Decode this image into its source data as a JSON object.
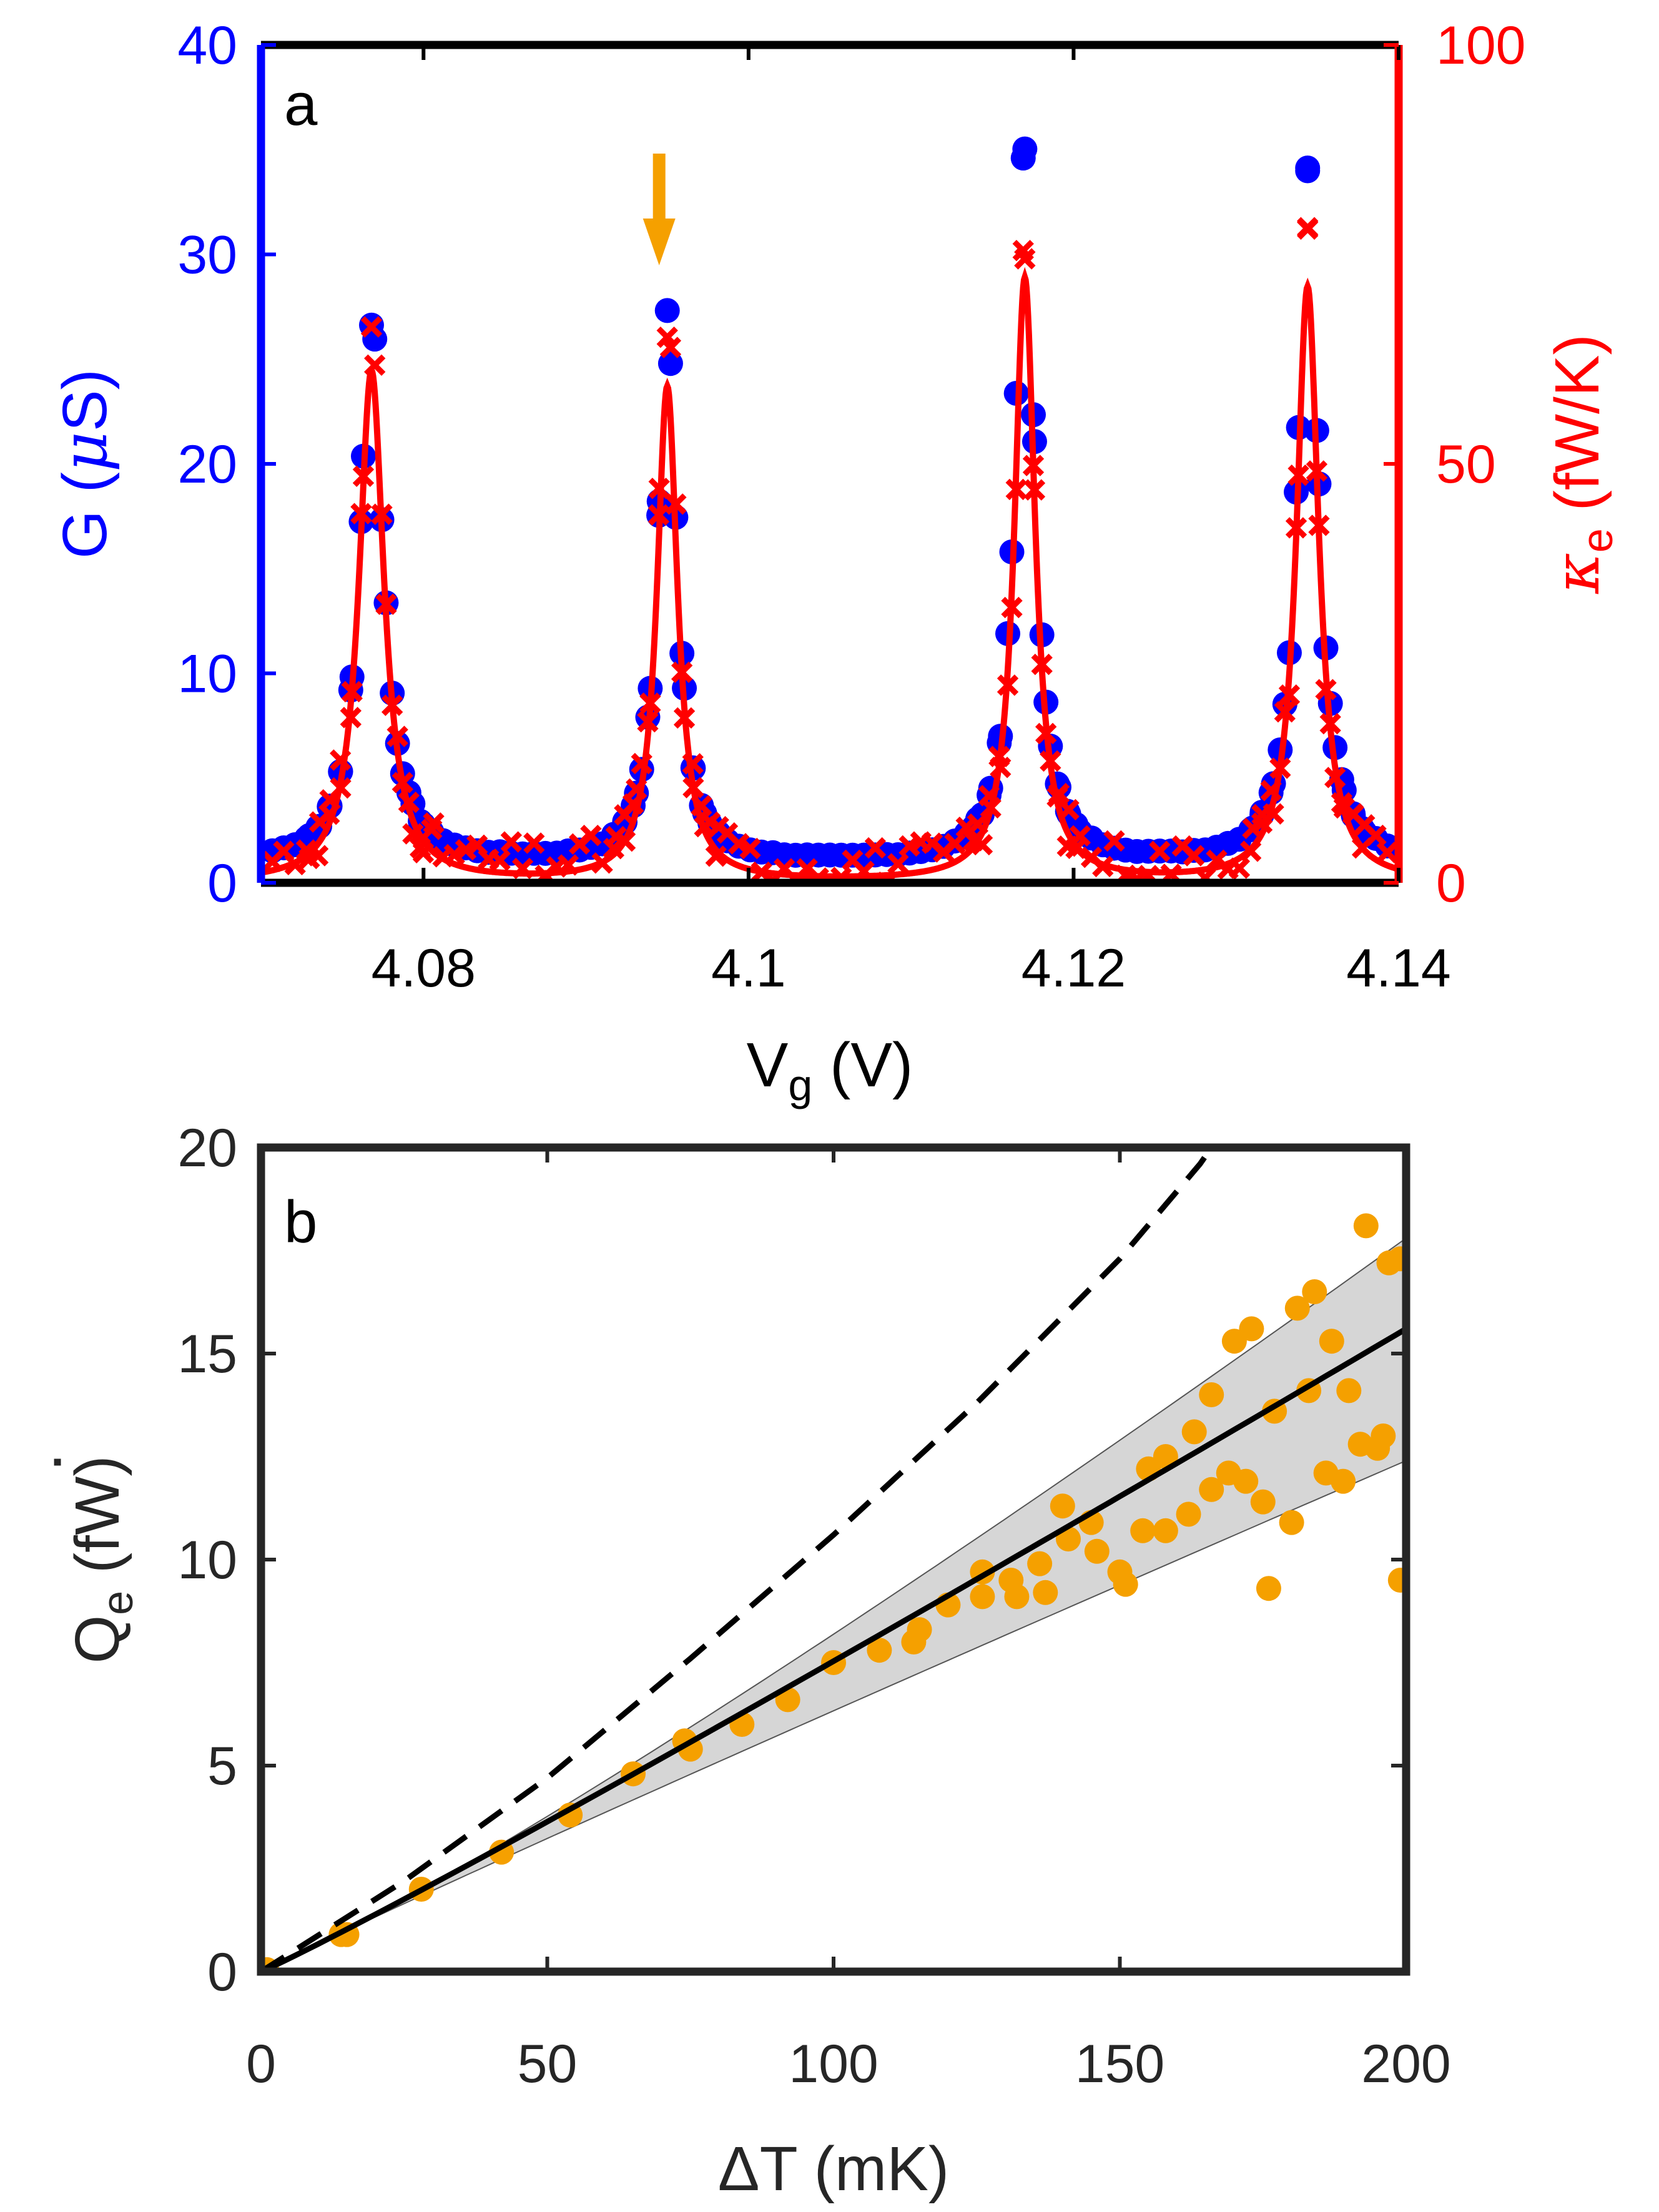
{
  "chart_data": [
    {
      "type": "scatter",
      "panel_label": "a",
      "xlabel": {
        "main": "V",
        "sub": "g",
        "unit": " (V)"
      },
      "ylabel_left": {
        "main": "G (",
        "mu": "μ",
        "unit": "S)"
      },
      "ylabel_right": {
        "kappa": "κ",
        "sub": "e",
        "unit": " (fW/K)"
      },
      "xlim": [
        4.07,
        4.14
      ],
      "ylim_left": [
        0,
        40
      ],
      "ylim_right": [
        0,
        100
      ],
      "xticks": [
        4.08,
        4.1,
        4.12,
        4.14
      ],
      "xtick_labels": [
        "4.08",
        "4.1",
        "4.12",
        "4.14"
      ],
      "yticks_left": [
        0,
        10,
        20,
        30,
        40
      ],
      "ytick_labels_left": [
        "0",
        "10",
        "20",
        "30",
        "40"
      ],
      "yticks_right": [
        0,
        50,
        100
      ],
      "ytick_labels_right": [
        "0",
        "50",
        "100"
      ],
      "colors": {
        "G": "#0000ff",
        "kappa": "#ff0000",
        "arrow": "#f5a000",
        "axis": "#000000"
      },
      "arrow_at_x": 4.0945,
      "peaks": [
        {
          "center": 4.0768,
          "G_peak": 27.0,
          "kappa_peak": 66,
          "kappa_fit_peak": 61,
          "width": 0.00085
        },
        {
          "center": 4.095,
          "G_peak": 27.3,
          "kappa_peak": 67,
          "kappa_fit_peak": 59,
          "width": 0.0007
        },
        {
          "center": 4.117,
          "G_peak": 35.0,
          "kappa_peak": 76,
          "kappa_fit_peak": 72,
          "width": 0.0007
        },
        {
          "center": 4.1344,
          "G_peak": 34.1,
          "kappa_peak": 77,
          "kappa_fit_peak": 71,
          "width": 0.00075
        }
      ],
      "baseline": {
        "G": 1.0,
        "kappa": 1.5
      },
      "series": [
        {
          "name": "G",
          "axis": "left",
          "marker": "circle"
        },
        {
          "name": "kappa_e",
          "axis": "right",
          "marker": "x"
        },
        {
          "name": "kappa_e fit",
          "axis": "right",
          "style": "line"
        }
      ]
    },
    {
      "type": "scatter",
      "panel_label": "b",
      "xlabel": "ΔT (mK)",
      "ylabel": {
        "dot": "˙",
        "main": "Q",
        "sub": "e",
        "unit": " (fW)"
      },
      "xlim": [
        0,
        200
      ],
      "ylim": [
        0,
        20
      ],
      "xticks": [
        0,
        50,
        100,
        150,
        200
      ],
      "xtick_labels": [
        "0",
        "50",
        "100",
        "150",
        "200"
      ],
      "yticks": [
        0,
        5,
        10,
        15,
        20
      ],
      "ytick_labels": [
        "0",
        "5",
        "10",
        "15",
        "20"
      ],
      "colors": {
        "points": "#f5a000",
        "band": "#b4b4b4",
        "fit": "#000000",
        "dashed": "#000000"
      },
      "points": [
        [
          0,
          0
        ],
        [
          1,
          0.05
        ],
        [
          14,
          0.9
        ],
        [
          15,
          0.9
        ],
        [
          28,
          2.0
        ],
        [
          42,
          2.9
        ],
        [
          54,
          3.8
        ],
        [
          65,
          4.8
        ],
        [
          74,
          5.6
        ],
        [
          75,
          5.4
        ],
        [
          84,
          6.0
        ],
        [
          92,
          6.6
        ],
        [
          100,
          7.5
        ],
        [
          108,
          7.8
        ],
        [
          114,
          8.0
        ],
        [
          115,
          8.3
        ],
        [
          120,
          8.9
        ],
        [
          126,
          9.7
        ],
        [
          126,
          9.1
        ],
        [
          131,
          9.5
        ],
        [
          132,
          9.1
        ],
        [
          136,
          9.9
        ],
        [
          137,
          9.2
        ],
        [
          140,
          11.3
        ],
        [
          141,
          10.5
        ],
        [
          145,
          10.9
        ],
        [
          146,
          10.2
        ],
        [
          150,
          9.7
        ],
        [
          151,
          9.4
        ],
        [
          154,
          10.7
        ],
        [
          155,
          12.2
        ],
        [
          158,
          12.5
        ],
        [
          158,
          10.7
        ],
        [
          162,
          11.1
        ],
        [
          163,
          13.1
        ],
        [
          166,
          11.7
        ],
        [
          166,
          14.0
        ],
        [
          169,
          12.1
        ],
        [
          170,
          15.3
        ],
        [
          172,
          11.9
        ],
        [
          173,
          15.6
        ],
        [
          175,
          11.4
        ],
        [
          176,
          9.3
        ],
        [
          177,
          13.6
        ],
        [
          180,
          10.9
        ],
        [
          181,
          16.1
        ],
        [
          183,
          14.1
        ],
        [
          184,
          16.5
        ],
        [
          186,
          12.1
        ],
        [
          187,
          15.3
        ],
        [
          189,
          11.9
        ],
        [
          190,
          14.1
        ],
        [
          192,
          12.8
        ],
        [
          193,
          18.1
        ],
        [
          195,
          12.7
        ],
        [
          196,
          13.0
        ],
        [
          197,
          17.2
        ],
        [
          199,
          9.5
        ],
        [
          199,
          17.3
        ]
      ],
      "fit_line": [
        [
          0,
          0
        ],
        [
          200,
          15.6
        ]
      ],
      "band_upper_at_200": 17.8,
      "band_lower_at_200": 12.4,
      "dashed_curve": [
        [
          0,
          0
        ],
        [
          25,
          2.2
        ],
        [
          50,
          4.7
        ],
        [
          75,
          7.6
        ],
        [
          100,
          10.6
        ],
        [
          125,
          13.8
        ],
        [
          150,
          17.3
        ],
        [
          164,
          19.6
        ],
        [
          166,
          20.0
        ]
      ]
    }
  ]
}
